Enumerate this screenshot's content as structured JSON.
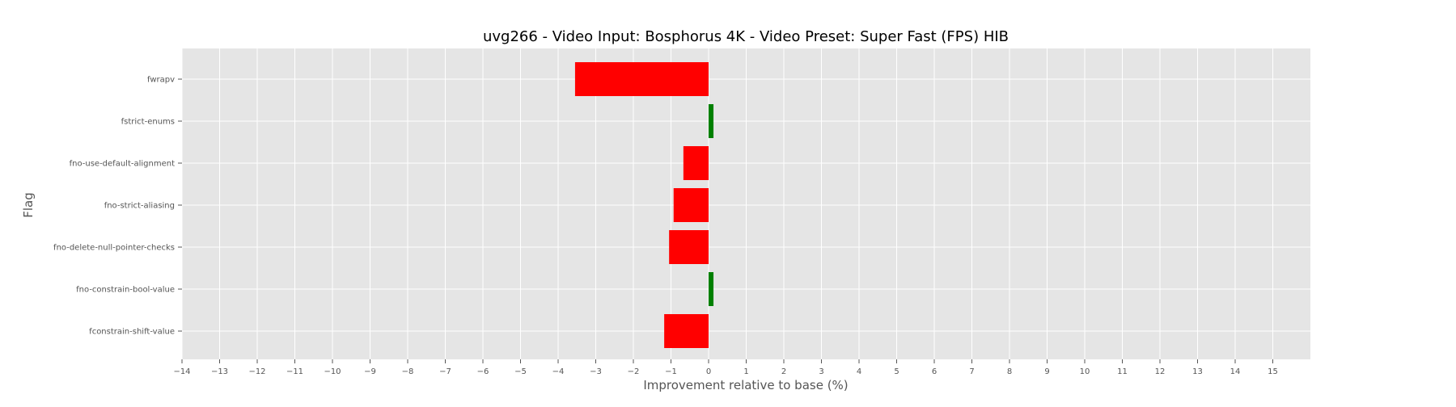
{
  "chart_data": {
    "type": "bar",
    "orientation": "horizontal",
    "title": "uvg266 - Video Input: Bosphorus 4K - Video Preset: Super Fast (FPS) HIB",
    "xlabel": "Improvement relative to base (%)",
    "ylabel": "Flag",
    "categories": [
      "fwrapv",
      "fstrict-enums",
      "fno-use-default-alignment",
      "fno-strict-aliasing",
      "fno-delete-null-pointer-checks",
      "fno-constrain-bool-value",
      "fconstrain-shift-value"
    ],
    "values": [
      -3.55,
      0.13,
      -0.67,
      -0.93,
      -1.05,
      0.13,
      -1.18
    ],
    "xlim": [
      -14,
      16
    ],
    "xticks": [
      -14,
      -13,
      -12,
      -11,
      -10,
      -9,
      -8,
      -7,
      -6,
      -5,
      -4,
      -3,
      -2,
      -1,
      0,
      1,
      2,
      3,
      4,
      5,
      6,
      7,
      8,
      9,
      10,
      11,
      12,
      13,
      14,
      15
    ],
    "grid": true,
    "colors": {
      "negative": "#ff0000",
      "positive": "#008000",
      "plot_background": "#e5e5e5",
      "grid": "#ffffff"
    }
  }
}
